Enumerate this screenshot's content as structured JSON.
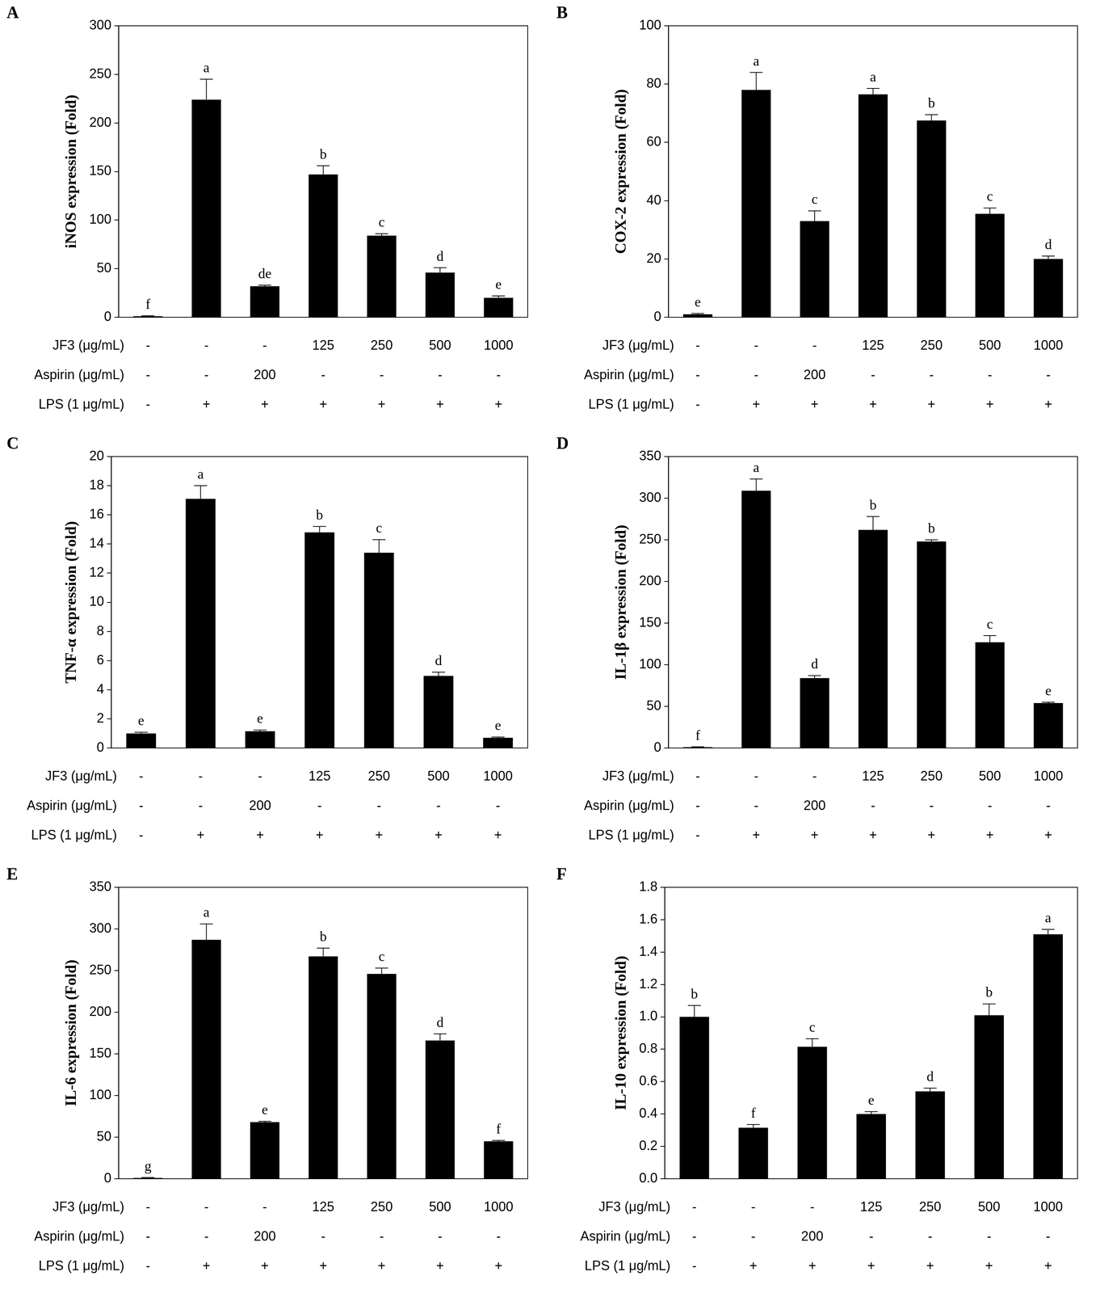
{
  "chart_data": [
    {
      "type": "bar",
      "panel": "A",
      "ylabel": "iNOS expression (Fold)",
      "color": "#000000",
      "grid": false,
      "treatments": [
        {
          "label": "JF3 (μg/mL)",
          "levels": [
            "-",
            "-",
            "-",
            "125",
            "250",
            "500",
            "1000"
          ]
        },
        {
          "label": "Aspirin (μg/mL)",
          "levels": [
            "-",
            "-",
            "200",
            "-",
            "-",
            "-",
            "-"
          ]
        },
        {
          "label": "LPS (1 μg/mL)",
          "levels": [
            "-",
            "+",
            "+",
            "+",
            "+",
            "+",
            "+"
          ]
        }
      ],
      "values": [
        1,
        224,
        32,
        147,
        84,
        46,
        20
      ],
      "errors": [
        0.5,
        21,
        1,
        9,
        2,
        5,
        2
      ],
      "letters": [
        "f",
        "a",
        "de",
        "b",
        "c",
        "d",
        "e"
      ],
      "ylim": [
        0,
        300
      ],
      "yticks": [
        0,
        50,
        100,
        150,
        200,
        250,
        300
      ]
    },
    {
      "type": "bar",
      "panel": "B",
      "ylabel": "COX-2 expression (Fold)",
      "color": "#000000",
      "grid": false,
      "treatments": [
        {
          "label": "JF3 (μg/mL)",
          "levels": [
            "-",
            "-",
            "-",
            "125",
            "250",
            "500",
            "1000"
          ]
        },
        {
          "label": "Aspirin (μg/mL)",
          "levels": [
            "-",
            "-",
            "200",
            "-",
            "-",
            "-",
            "-"
          ]
        },
        {
          "label": "LPS (1 μg/mL)",
          "levels": [
            "-",
            "+",
            "+",
            "+",
            "+",
            "+",
            "+"
          ]
        }
      ],
      "values": [
        1,
        78,
        33,
        76.5,
        67.5,
        35.5,
        20
      ],
      "errors": [
        0.3,
        6,
        3.5,
        2,
        2,
        2,
        1
      ],
      "letters": [
        "e",
        "a",
        "c",
        "a",
        "b",
        "c",
        "d"
      ],
      "ylim": [
        0,
        100
      ],
      "yticks": [
        0,
        20,
        40,
        60,
        80,
        100
      ]
    },
    {
      "type": "bar",
      "panel": "C",
      "ylabel": "TNF-α expression (Fold)",
      "color": "#000000",
      "grid": false,
      "treatments": [
        {
          "label": "JF3 (μg/mL)",
          "levels": [
            "-",
            "-",
            "-",
            "125",
            "250",
            "500",
            "1000"
          ]
        },
        {
          "label": "Aspirin (μg/mL)",
          "levels": [
            "-",
            "-",
            "200",
            "-",
            "-",
            "-",
            "-"
          ]
        },
        {
          "label": "LPS (1 μg/mL)",
          "levels": [
            "-",
            "+",
            "+",
            "+",
            "+",
            "+",
            "+"
          ]
        }
      ],
      "values": [
        1.0,
        17.1,
        1.15,
        14.8,
        13.4,
        4.95,
        0.7
      ],
      "errors": [
        0.08,
        0.9,
        0.08,
        0.4,
        0.9,
        0.25,
        0.05
      ],
      "letters": [
        "e",
        "a",
        "e",
        "b",
        "c",
        "d",
        "e"
      ],
      "ylim": [
        0,
        20
      ],
      "yticks": [
        0,
        2,
        4,
        6,
        8,
        10,
        12,
        14,
        16,
        18,
        20
      ]
    },
    {
      "type": "bar",
      "panel": "D",
      "ylabel": "IL-1β expression (Fold)",
      "color": "#000000",
      "grid": false,
      "treatments": [
        {
          "label": "JF3 (μg/mL)",
          "levels": [
            "-",
            "-",
            "-",
            "125",
            "250",
            "500",
            "1000"
          ]
        },
        {
          "label": "Aspirin (μg/mL)",
          "levels": [
            "-",
            "-",
            "200",
            "-",
            "-",
            "-",
            "-"
          ]
        },
        {
          "label": "LPS (1 μg/mL)",
          "levels": [
            "-",
            "+",
            "+",
            "+",
            "+",
            "+",
            "+"
          ]
        }
      ],
      "values": [
        1,
        309,
        84,
        262,
        248,
        127,
        54
      ],
      "errors": [
        0.5,
        14,
        3,
        16,
        2,
        8,
        1
      ],
      "letters": [
        "f",
        "a",
        "d",
        "b",
        "b",
        "c",
        "e"
      ],
      "ylim": [
        0,
        350
      ],
      "yticks": [
        0,
        50,
        100,
        150,
        200,
        250,
        300,
        350
      ]
    },
    {
      "type": "bar",
      "panel": "E",
      "ylabel": "IL-6 expression (Fold)",
      "color": "#000000",
      "grid": false,
      "treatments": [
        {
          "label": "JF3 (μg/mL)",
          "levels": [
            "-",
            "-",
            "-",
            "125",
            "250",
            "500",
            "1000"
          ]
        },
        {
          "label": "Aspirin (μg/mL)",
          "levels": [
            "-",
            "-",
            "200",
            "-",
            "-",
            "-",
            "-"
          ]
        },
        {
          "label": "LPS (1 μg/mL)",
          "levels": [
            "-",
            "+",
            "+",
            "+",
            "+",
            "+",
            "+"
          ]
        }
      ],
      "values": [
        1,
        287,
        68,
        267,
        246,
        166,
        45
      ],
      "errors": [
        0.5,
        19,
        1,
        10,
        7,
        8,
        1
      ],
      "letters": [
        "g",
        "a",
        "e",
        "b",
        "c",
        "d",
        "f"
      ],
      "ylim": [
        0,
        350
      ],
      "yticks": [
        0,
        50,
        100,
        150,
        200,
        250,
        300,
        350
      ]
    },
    {
      "type": "bar",
      "panel": "F",
      "ylabel": "IL-10 expression (Fold)",
      "color": "#000000",
      "grid": false,
      "treatments": [
        {
          "label": "JF3 (μg/mL)",
          "levels": [
            "-",
            "-",
            "-",
            "125",
            "250",
            "500",
            "1000"
          ]
        },
        {
          "label": "Aspirin (μg/mL)",
          "levels": [
            "-",
            "-",
            "200",
            "-",
            "-",
            "-",
            "-"
          ]
        },
        {
          "label": "LPS (1 μg/mL)",
          "levels": [
            "-",
            "+",
            "+",
            "+",
            "+",
            "+",
            "+"
          ]
        }
      ],
      "values": [
        1.0,
        0.315,
        0.815,
        0.4,
        0.54,
        1.01,
        1.51
      ],
      "errors": [
        0.07,
        0.02,
        0.05,
        0.015,
        0.02,
        0.07,
        0.03
      ],
      "letters": [
        "b",
        "f",
        "c",
        "e",
        "d",
        "b",
        "a"
      ],
      "ylim": [
        0,
        1.8
      ],
      "yticks": [
        {
          "value": 0,
          "label": "0.0"
        },
        {
          "value": 0.2,
          "label": "0.2"
        },
        {
          "value": 0.4,
          "label": "0.4"
        },
        {
          "value": 0.6,
          "label": "0.6"
        },
        {
          "value": 0.8,
          "label": "0.8"
        },
        {
          "value": 1,
          "label": "1.0"
        },
        {
          "value": 1.2,
          "label": "1.2"
        },
        {
          "value": 1.4,
          "label": "1.4"
        },
        {
          "value": 1.6,
          "label": "1.6"
        },
        {
          "value": 1.8,
          "label": "1.8"
        }
      ]
    }
  ]
}
